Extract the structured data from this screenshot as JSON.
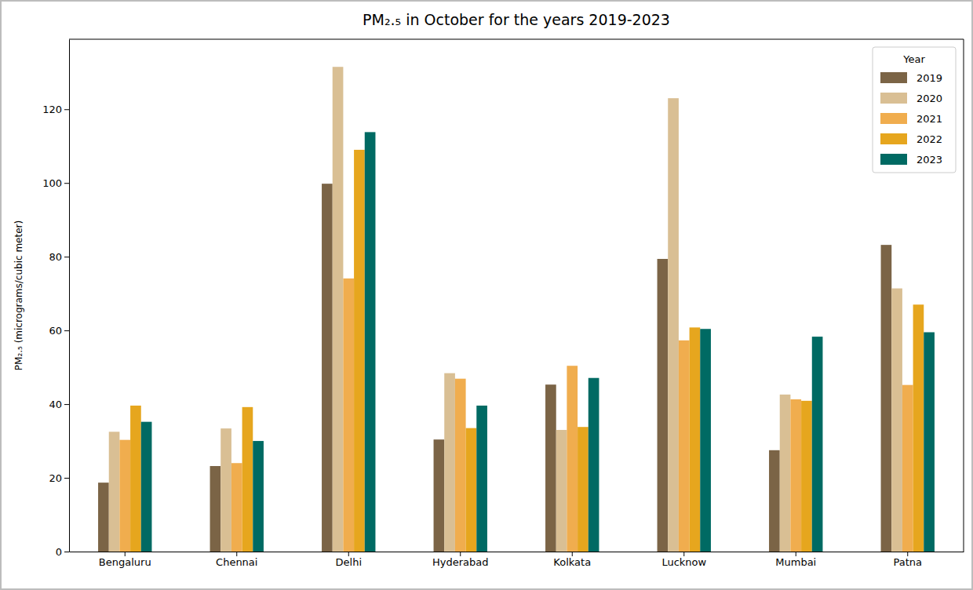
{
  "chart_data": {
    "type": "bar",
    "title": "PM₂.₅ in October for the years 2019-2023",
    "y_label": "PM₂.₅ (micrograms/cubic meter)",
    "legend_title": "Year",
    "categories": [
      "Bengaluru",
      "Chennai",
      "Delhi",
      "Hyderabad",
      "Kolkata",
      "Lucknow",
      "Mumbai",
      "Patna"
    ],
    "series": [
      {
        "name": "2019",
        "color": "#7b6446",
        "values": [
          18.7,
          23.2,
          99.8,
          30.4,
          45.3,
          79.4,
          27.5,
          83.2
        ]
      },
      {
        "name": "2020",
        "color": "#d9bf94",
        "values": [
          32.5,
          33.4,
          131.5,
          48.4,
          33.0,
          123.0,
          42.6,
          71.4
        ]
      },
      {
        "name": "2021",
        "color": "#f0ad4e",
        "values": [
          30.3,
          24.0,
          74.1,
          46.9,
          50.4,
          57.3,
          41.3,
          45.2
        ]
      },
      {
        "name": "2022",
        "color": "#e6a61e",
        "values": [
          39.6,
          39.2,
          109.0,
          33.5,
          33.8,
          60.8,
          40.9,
          67.0
        ]
      },
      {
        "name": "2023",
        "color": "#006a63",
        "values": [
          35.2,
          30.0,
          113.8,
          39.6,
          47.1,
          60.4,
          58.3,
          59.5
        ]
      }
    ],
    "ylim": [
      0,
      139
    ],
    "yticks": [
      0,
      20,
      40,
      60,
      80,
      100,
      120
    ],
    "grid": false,
    "legend": "upper right"
  }
}
